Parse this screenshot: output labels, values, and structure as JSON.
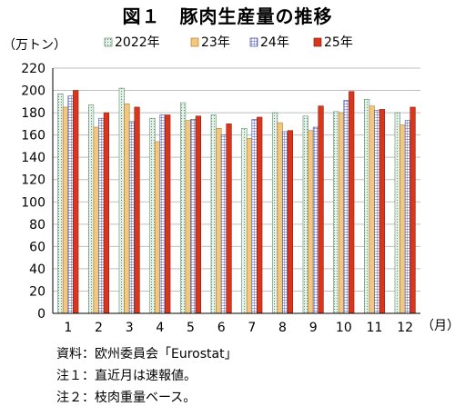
{
  "chart_data": {
    "type": "bar",
    "title": "図１　豚肉生産量の推移",
    "ylabel": "（万トン）",
    "xlabel": "（月）",
    "categories": [
      "1",
      "2",
      "3",
      "4",
      "5",
      "6",
      "7",
      "8",
      "9",
      "10",
      "11",
      "12"
    ],
    "ylim": [
      0,
      220
    ],
    "yticks": [
      0,
      20,
      40,
      60,
      80,
      100,
      120,
      140,
      160,
      180,
      200,
      220
    ],
    "grid": true,
    "legend_position": "top",
    "series": [
      {
        "name": "2022年",
        "color": "#e6f2ea",
        "pattern": "dots",
        "values": [
          197,
          187,
          202,
          175,
          189,
          178,
          166,
          180,
          177,
          181,
          192,
          180
        ]
      },
      {
        "name": "23年",
        "color": "#f4c77e",
        "pattern": "solid",
        "values": [
          185,
          167,
          188,
          154,
          173,
          166,
          157,
          171,
          164,
          180,
          186,
          169
        ]
      },
      {
        "name": "24年",
        "color": "#8a96d6",
        "pattern": "grid",
        "values": [
          195,
          175,
          172,
          178,
          174,
          160,
          174,
          163,
          167,
          191,
          182,
          173
        ]
      },
      {
        "name": "25年",
        "color": "#d9361c",
        "pattern": "solid",
        "values": [
          200,
          180,
          185,
          178,
          177,
          170,
          176,
          164,
          186,
          199,
          183,
          185
        ]
      }
    ]
  },
  "notes": {
    "source": "資料：欧州委員会「Eurostat」",
    "note1": "注１：直近月は速報値。",
    "note2": "注２：枝肉重量ベース。"
  }
}
